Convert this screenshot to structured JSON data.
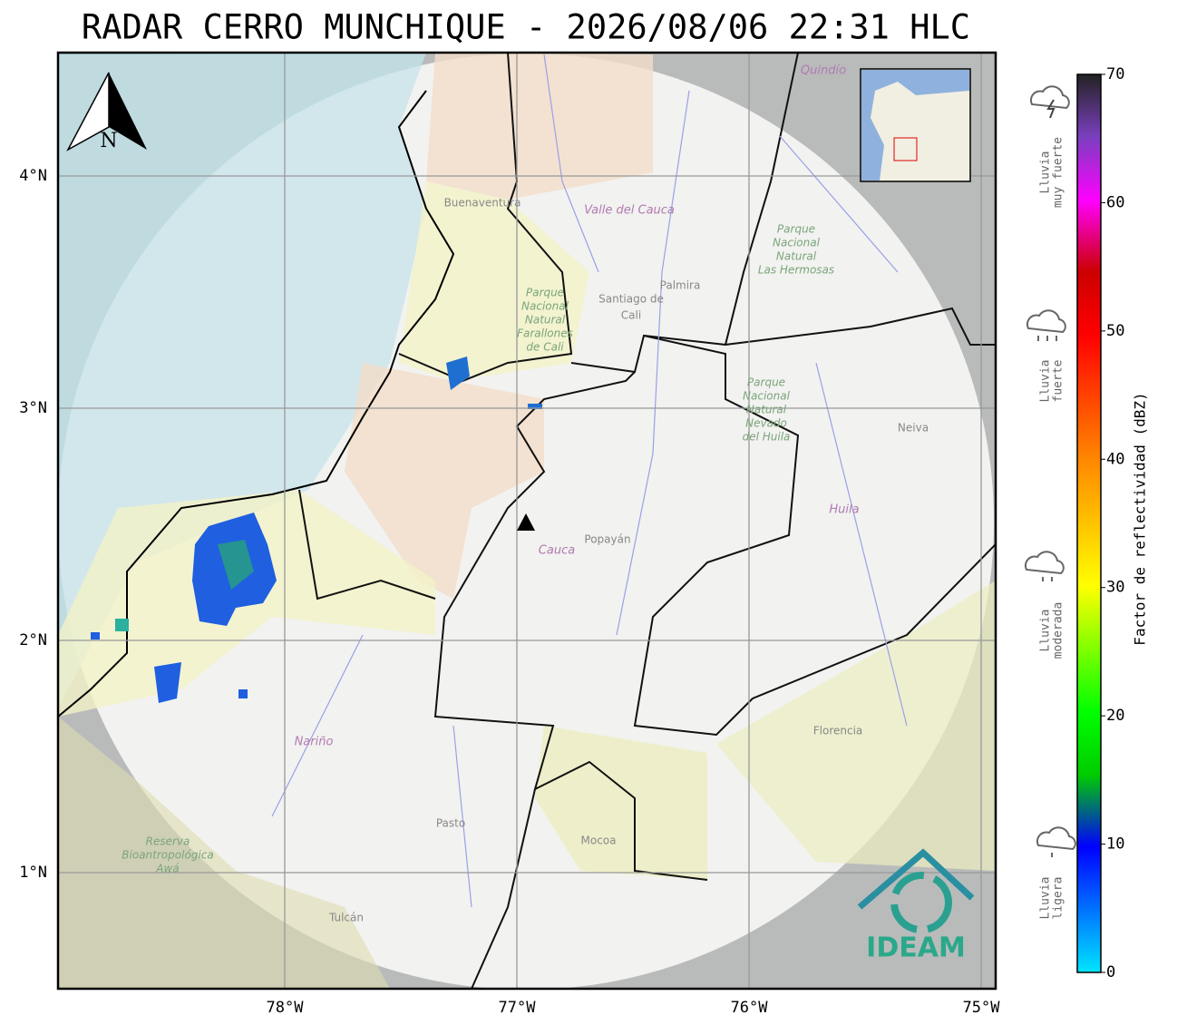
{
  "map": {
    "title": "RADAR CERRO MUNCHIQUE - 2026/08/06 22:31 HLC",
    "north": "N",
    "logo": "IDEAM",
    "lon_ticks": [
      {
        "value": -78,
        "label": "78°W"
      },
      {
        "value": -77,
        "label": "77°W"
      },
      {
        "value": -76,
        "label": "76°W"
      },
      {
        "value": -75,
        "label": "75°W"
      }
    ],
    "lat_ticks": [
      {
        "value": 4,
        "label": "4°N"
      },
      {
        "value": 3,
        "label": "3°N"
      },
      {
        "value": 2,
        "label": "2°N"
      },
      {
        "value": 1,
        "label": "1°N"
      }
    ],
    "places": [
      {
        "kind": "place",
        "lines": [
          "Buenaventura"
        ]
      },
      {
        "kind": "dept",
        "lines": [
          "Valle del Cauca"
        ]
      },
      {
        "kind": "place",
        "lines": [
          "Palmira"
        ]
      },
      {
        "kind": "city",
        "lines": [
          "Santiago de",
          "Cali"
        ]
      },
      {
        "kind": "park",
        "lines": [
          "Parque",
          "Nacional",
          "Natural",
          "Farallones",
          "de Cali"
        ]
      },
      {
        "kind": "park",
        "lines": [
          "Parque",
          "Nacional",
          "Natural",
          "Las Hermosas"
        ]
      },
      {
        "kind": "park",
        "lines": [
          "Parque",
          "Nacional",
          "Natural",
          "Nevado",
          "del Huila"
        ]
      },
      {
        "kind": "place",
        "lines": [
          "Neiva"
        ]
      },
      {
        "kind": "dept",
        "lines": [
          "Huila"
        ]
      },
      {
        "kind": "place",
        "lines": [
          "Popayán"
        ]
      },
      {
        "kind": "dept",
        "lines": [
          "Cauca"
        ]
      },
      {
        "kind": "dept",
        "lines": [
          "Nariño"
        ]
      },
      {
        "kind": "place",
        "lines": [
          "Pasto"
        ]
      },
      {
        "kind": "place",
        "lines": [
          "Mocoa"
        ]
      },
      {
        "kind": "place",
        "lines": [
          "Florencia"
        ]
      },
      {
        "kind": "park",
        "lines": [
          "Reserva",
          "Bioantropológica",
          "Awá"
        ]
      },
      {
        "kind": "place",
        "lines": [
          "Tulcán"
        ]
      },
      {
        "kind": "dept",
        "lines": [
          "Quindío"
        ]
      }
    ],
    "colorbar": {
      "label": "Factor de reflectividad (dBZ)",
      "lim": [
        0,
        70
      ],
      "ticks": [
        0,
        10,
        20,
        30,
        40,
        50,
        60,
        70
      ]
    },
    "legend": [
      {
        "lines": [
          "Lluvia",
          "muy fuerte"
        ]
      },
      {
        "lines": [
          "Lluvia",
          "fuerte"
        ]
      },
      {
        "lines": [
          "Lluvia",
          "moderada"
        ]
      },
      {
        "lines": [
          "Lluvia",
          "ligera"
        ]
      }
    ]
  }
}
